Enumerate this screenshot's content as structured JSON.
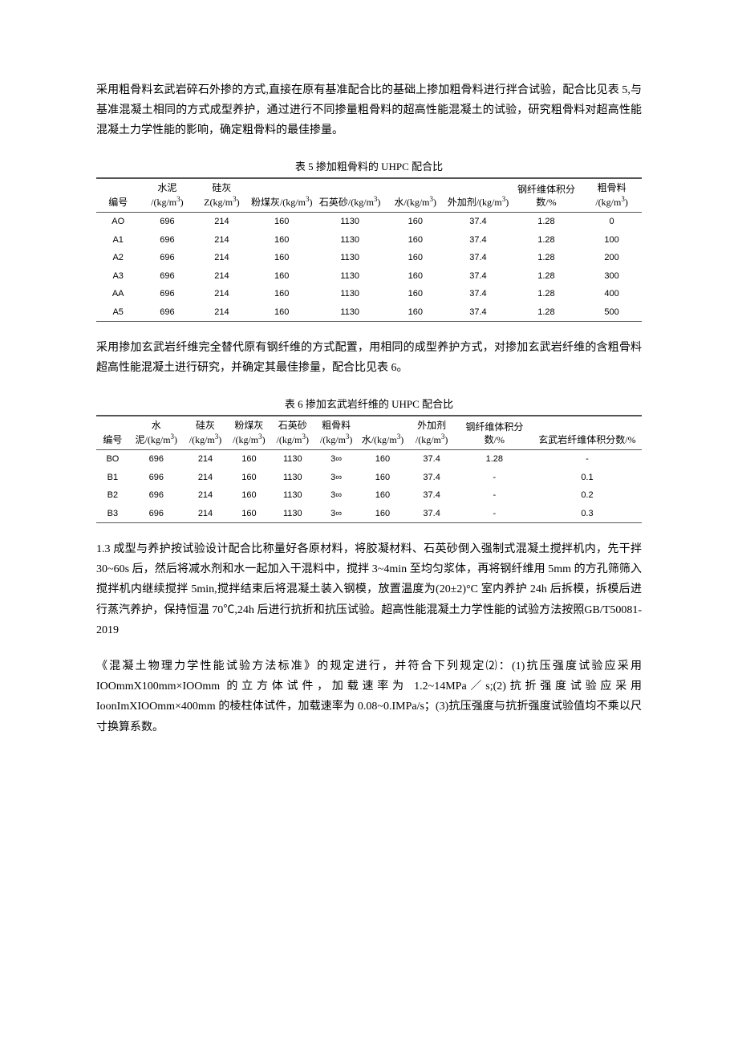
{
  "para1": "采用粗骨料玄武岩碎石外掺的方式,直接在原有基准配合比的基础上掺加粗骨料进行拌合试验，配合比见表 5,与基准混凝土相同的方式成型养护，通过进行不同掺量粗骨料的超高性能混凝土的试验，研究粗骨料对超高性能混凝土力学性能的影响，确定粗骨料的最佳掺量。",
  "table5": {
    "caption": "表 5 掺加粗骨料的 UHPC 配合比",
    "headers": [
      "编号",
      "水泥\n/(kg/m³)",
      "硅灰\nZ(kg/m³)",
      "粉煤灰/(kg/m³)",
      "石英砂/(kg/m³)",
      "水/(kg/m³)",
      "外加剂/(kg/m³)",
      "钢纤维体积分数/%",
      "粗骨料\n/(kg/m³)"
    ],
    "rows": [
      [
        "AO",
        "696",
        "214",
        "160",
        "1130",
        "160",
        "37.4",
        "1.28",
        "0"
      ],
      [
        "A1",
        "696",
        "214",
        "160",
        "1130",
        "160",
        "37.4",
        "1.28",
        "100"
      ],
      [
        "A2",
        "696",
        "214",
        "160",
        "1130",
        "160",
        "37.4",
        "1.28",
        "200"
      ],
      [
        "A3",
        "696",
        "214",
        "160",
        "1130",
        "160",
        "37.4",
        "1.28",
        "300"
      ],
      [
        "AA",
        "696",
        "214",
        "160",
        "1130",
        "160",
        "37.4",
        "1.28",
        "400"
      ],
      [
        "A5",
        "696",
        "214",
        "160",
        "1130",
        "160",
        "37.4",
        "1.28",
        "500"
      ]
    ],
    "col_widths": [
      "8%",
      "10%",
      "10%",
      "12%",
      "13%",
      "11%",
      "12%",
      "13%",
      "11%"
    ]
  },
  "para2": "采用掺加玄武岩纤维完全替代原有钢纤维的方式配置，用相同的成型养护方式，对掺加玄武岩纤维的含粗骨料超高性能混凝土进行研究，并确定其最佳掺量，配合比见表 6。",
  "table6": {
    "caption": "表 6 掺加玄武岩纤维的 UHPC 配合比",
    "headers": [
      "编号",
      "水泥/(kg/m³)",
      "硅灰\n/(kg/m³)",
      "粉煤灰\n/(kg/m³)",
      "石英砂\n/(kg/m³)",
      "粗骨料\n/(kg/m³)",
      "水/(kg/m³)",
      "外加剂\n/(kg/m³)",
      "钢纤维体积分数/%",
      "玄武岩纤维体积分数/%"
    ],
    "rows": [
      [
        "BO",
        "696",
        "214",
        "160",
        "1130",
        "3∞",
        "160",
        "37.4",
        "1.28",
        "-"
      ],
      [
        "B1",
        "696",
        "214",
        "160",
        "1130",
        "3∞",
        "160",
        "37.4",
        "-",
        "0.1"
      ],
      [
        "B2",
        "696",
        "214",
        "160",
        "1130",
        "3∞",
        "160",
        "37.4",
        "-",
        "0.2"
      ],
      [
        "B3",
        "696",
        "214",
        "160",
        "1130",
        "3∞",
        "160",
        "37.4",
        "-",
        "0.3"
      ]
    ],
    "col_widths": [
      "6%",
      "10%",
      "8%",
      "8%",
      "8%",
      "8%",
      "9%",
      "9%",
      "14%",
      "20%"
    ]
  },
  "para3": "1.3 成型与养护按试验设计配合比称量好各原材料，将胶凝材料、石英砂倒入强制式混凝土搅拌机内，先干拌30~60s 后，然后将减水剂和水一起加入干混料中，搅拌 3~4min 至均匀浆体，再将钢纤维用 5mm 的方孔筛筛入搅拌机内继续搅拌 5min,搅拌结束后将混凝土装入钢模，放置温度为(20±2)°C 室内养护 24h 后拆模，拆模后进行蒸汽养护，保持恒温 70℃,24h 后进行抗折和抗压试验。超高性能混凝土力学性能的试验方法按照GB/T50081-2019",
  "para4": "《混凝土物理力学性能试验方法标准》的规定进行，并符合下列规定⑵：(1)抗压强度试验应采用IOOmmX100mm×IOOmm 的立方体试件，加载速率为 1.2~14MPa／s;(2)抗折强度试验应采用IoonImXIOOmm×400mm 的棱柱体试件，加载速率为 0.08~0.IMPa/s；(3)抗压强度与抗折强度试验值均不乘以尺寸换算系数。"
}
